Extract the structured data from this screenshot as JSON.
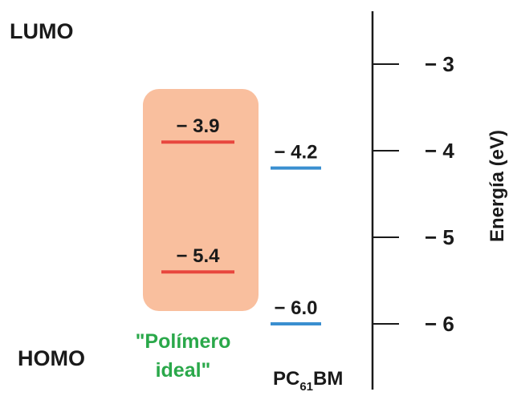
{
  "labels": {
    "lumo": "LUMO",
    "homo": "HOMO",
    "ideal_line1": "\"Polímero",
    "ideal_line2": "ideal\"",
    "pcbm_prefix": "PC",
    "pcbm_sub": "61",
    "pcbm_suffix": "BM",
    "axis_title": "Energía (eV)"
  },
  "axis": {
    "ticks": [
      {
        "value": -3,
        "label": "− 3"
      },
      {
        "value": -4,
        "label": "− 4"
      },
      {
        "value": -5,
        "label": "− 5"
      },
      {
        "value": -6,
        "label": "− 6"
      }
    ]
  },
  "levels": {
    "ideal_lumo": {
      "value": -3.9,
      "label": "− 3.9",
      "color": "#e8473e"
    },
    "ideal_homo": {
      "value": -5.4,
      "label": "− 5.4",
      "color": "#e8473e"
    },
    "pcbm_lumo": {
      "value": -4.2,
      "label": "− 4.2",
      "color": "#3a8fd0"
    },
    "pcbm_homo": {
      "value": -6.0,
      "label": "− 6.0",
      "color": "#3a8fd0"
    }
  },
  "colors": {
    "box_fill": "#f9bf9e",
    "ideal_text": "#2aa84a",
    "axis": "#1a1a1a",
    "text": "#1a1a1a"
  }
}
